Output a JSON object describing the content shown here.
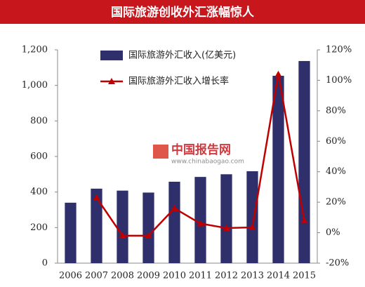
{
  "chart_data": {
    "type": "bar-line",
    "title": "国际旅游创收外汇涨幅惊人",
    "categories": [
      "2006",
      "2007",
      "2008",
      "2009",
      "2010",
      "2011",
      "2012",
      "2013",
      "2014",
      "2015"
    ],
    "series": [
      {
        "name": "国际旅游外汇收入(亿美元)",
        "color": "#2e2f6b",
        "type": "bar",
        "values": [
          340,
          419,
          408,
          397,
          458,
          485,
          500,
          517,
          1054,
          1137
        ]
      },
      {
        "name": "国际旅游外汇收入增长率",
        "color": "#c00000",
        "type": "line",
        "axis": "y2",
        "values": [
          null,
          23,
          -2,
          -2,
          16,
          6,
          3,
          3.5,
          104,
          8
        ]
      }
    ],
    "ylim": [
      0,
      1200
    ],
    "yticks": [
      0,
      200,
      400,
      600,
      800,
      {
        "value": 1000,
        "label": "1,000"
      },
      {
        "value": 1200,
        "label": "1,200"
      }
    ],
    "y2lim": [
      -20,
      120
    ],
    "y2ticks": [
      {
        "value": -20,
        "label": "-20%"
      },
      {
        "value": 0,
        "label": "0%"
      },
      {
        "value": 20,
        "label": "20%"
      },
      {
        "value": 40,
        "label": "40%"
      },
      {
        "value": 60,
        "label": "60%"
      },
      {
        "value": 80,
        "label": "80%"
      },
      {
        "value": 100,
        "label": "100%"
      },
      {
        "value": 120,
        "label": "120%"
      }
    ],
    "annotations": [
      "中国报告网",
      "www.chinabaogao.com"
    ]
  }
}
